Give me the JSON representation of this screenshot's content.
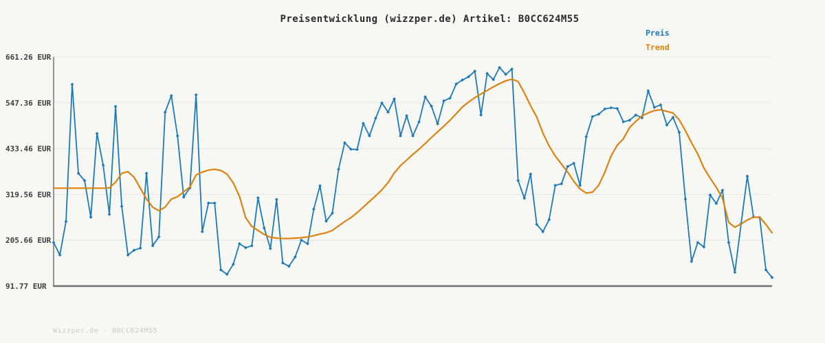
{
  "page": {
    "footer": "Wizzper.de - B0CC624M55"
  },
  "chart_data": {
    "type": "line",
    "title": "Preisentwicklung (wizzper.de) Artikel: B0CC624M55",
    "xlabel": "",
    "ylabel": "",
    "x_tick_labels": [],
    "x_points": 117,
    "ylim": [
      91.77,
      661.26
    ],
    "yticks": [
      {
        "value": 661.26,
        "label": "661.26 EUR"
      },
      {
        "value": 547.36,
        "label": "547.36 EUR"
      },
      {
        "value": 433.46,
        "label": "433.46 EUR"
      },
      {
        "value": 319.56,
        "label": "319.56 EUR"
      },
      {
        "value": 205.66,
        "label": "205.66 EUR"
      },
      {
        "value": 91.77,
        "label": "91.77 EUR"
      }
    ],
    "grid": true,
    "legend": {
      "position": "top-right",
      "entries": [
        {
          "label": "Preis",
          "color": "#1c79b8"
        },
        {
          "label": "Trend",
          "color": "#dd820f"
        }
      ]
    },
    "series": [
      {
        "name": "Preis",
        "color": "#1c79b8",
        "line_width": 1.8,
        "markers": true,
        "values": [
          200,
          169,
          252,
          593,
          372,
          354,
          263,
          471,
          392,
          270,
          538,
          290,
          169,
          181,
          186,
          372,
          192,
          214,
          524,
          565,
          465,
          313,
          336,
          567,
          227,
          298,
          298,
          132,
          121,
          146,
          197,
          187,
          192,
          311,
          236,
          185,
          307,
          149,
          141,
          164,
          206,
          197,
          283,
          341,
          253,
          273,
          382,
          448,
          432,
          431,
          496,
          465,
          509,
          547,
          524,
          557,
          465,
          515,
          465,
          500,
          562,
          539,
          495,
          552,
          559,
          594,
          604,
          612,
          626,
          517,
          620,
          605,
          635,
          618,
          631,
          354,
          310,
          370,
          245,
          227,
          257,
          342,
          346,
          389,
          397,
          342,
          463,
          513,
          519,
          532,
          535,
          533,
          500,
          504,
          517,
          510,
          577,
          536,
          542,
          492,
          511,
          474,
          308,
          153,
          200,
          189,
          318,
          297,
          330,
          200,
          126,
          247,
          365,
          264,
          262,
          132,
          113
        ]
      },
      {
        "name": "Trend",
        "color": "#dd820f",
        "line_width": 2.2,
        "markers": false,
        "values": [
          335,
          335,
          335,
          335,
          335,
          335,
          335,
          335,
          335,
          336,
          350,
          372,
          376,
          362,
          335,
          308,
          288,
          279,
          288,
          308,
          314,
          326,
          338,
          368,
          375,
          380,
          382,
          379,
          370,
          348,
          315,
          262,
          240,
          230,
          220,
          213,
          211,
          210,
          210,
          211,
          212,
          214,
          217,
          221,
          224,
          230,
          241,
          252,
          262,
          274,
          288,
          302,
          316,
          331,
          349,
          373,
          391,
          405,
          419,
          432,
          446,
          461,
          475,
          489,
          504,
          520,
          537,
          549,
          560,
          569,
          578,
          587,
          595,
          602,
          606,
          600,
          572,
          540,
          512,
          472,
          440,
          415,
          395,
          375,
          352,
          333,
          323,
          325,
          342,
          375,
          415,
          442,
          458,
          486,
          501,
          515,
          522,
          528,
          530,
          526,
          522,
          505,
          478,
          448,
          420,
          385,
          360,
          337,
          310,
          250,
          238,
          246,
          256,
          263,
          263,
          245,
          224
        ]
      }
    ]
  }
}
